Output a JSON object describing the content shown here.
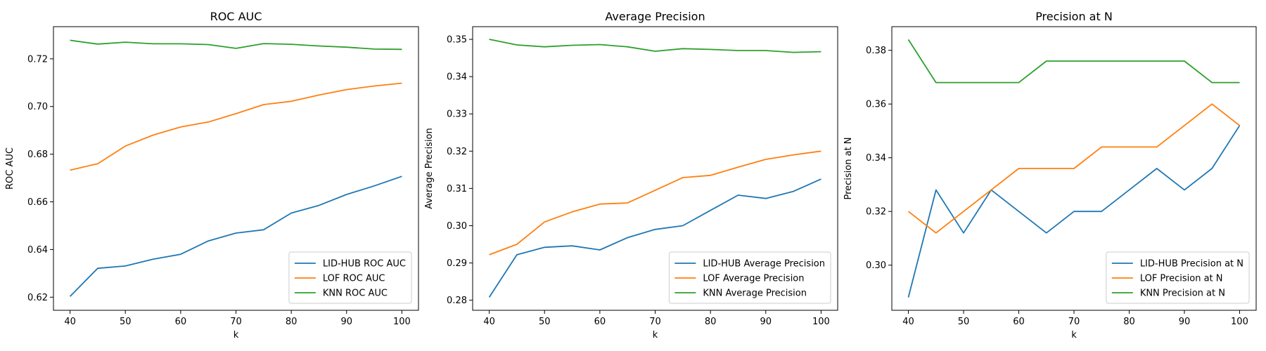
{
  "chart_data": [
    {
      "type": "line",
      "title": "ROC AUC",
      "xlabel": "k",
      "ylabel": "ROC AUC",
      "x": [
        40,
        45,
        50,
        55,
        60,
        65,
        70,
        75,
        80,
        85,
        90,
        95,
        100
      ],
      "xlim": [
        37,
        103
      ],
      "ylim": [
        0.6145,
        0.7335
      ],
      "xticks": [
        40,
        50,
        60,
        70,
        80,
        90,
        100
      ],
      "yticks": [
        0.62,
        0.64,
        0.66,
        0.68,
        0.7,
        0.72
      ],
      "ytick_labels": [
        "0.62",
        "0.64",
        "0.66",
        "0.68",
        "0.70",
        "0.72"
      ],
      "legend": "lower-right",
      "series": [
        {
          "name": "LID-HUB ROC AUC",
          "color": "#1f77b4",
          "values": [
            0.6203,
            0.6321,
            0.6331,
            0.6359,
            0.638,
            0.6436,
            0.6469,
            0.6483,
            0.6553,
            0.6585,
            0.6631,
            0.6667,
            0.6707
          ]
        },
        {
          "name": "LOF ROC AUC",
          "color": "#ff7f0e",
          "values": [
            0.6733,
            0.676,
            0.6834,
            0.688,
            0.6914,
            0.6935,
            0.697,
            0.7008,
            0.7022,
            0.7048,
            0.7071,
            0.7086,
            0.7098
          ]
        },
        {
          "name": "KNN ROC AUC",
          "color": "#2ca02c",
          "values": [
            0.7278,
            0.7262,
            0.727,
            0.7263,
            0.7263,
            0.726,
            0.7244,
            0.7264,
            0.7261,
            0.7254,
            0.7249,
            0.7241,
            0.724
          ]
        }
      ]
    },
    {
      "type": "line",
      "title": "Average Precision",
      "xlabel": "k",
      "ylabel": "Average Precision",
      "x": [
        40,
        45,
        50,
        55,
        60,
        65,
        70,
        75,
        80,
        85,
        90,
        95,
        100
      ],
      "xlim": [
        37,
        103
      ],
      "ylim": [
        0.2773,
        0.3534
      ],
      "xticks": [
        40,
        50,
        60,
        70,
        80,
        90,
        100
      ],
      "yticks": [
        0.28,
        0.29,
        0.3,
        0.31,
        0.32,
        0.33,
        0.34,
        0.35
      ],
      "ytick_labels": [
        "0.28",
        "0.29",
        "0.30",
        "0.31",
        "0.32",
        "0.33",
        "0.34",
        "0.35"
      ],
      "legend": "lower-right",
      "series": [
        {
          "name": "LID-HUB Average Precision",
          "color": "#1f77b4",
          "values": [
            0.2808,
            0.2922,
            0.2942,
            0.2946,
            0.2935,
            0.2968,
            0.299,
            0.3,
            0.3041,
            0.3082,
            0.3073,
            0.3092,
            0.3125
          ]
        },
        {
          "name": "LOF Average Precision",
          "color": "#ff7f0e",
          "values": [
            0.2922,
            0.295,
            0.301,
            0.3037,
            0.3058,
            0.3061,
            0.3095,
            0.3129,
            0.3135,
            0.3157,
            0.3178,
            0.319,
            0.32
          ]
        },
        {
          "name": "KNN Average Precision",
          "color": "#2ca02c",
          "values": [
            0.35,
            0.3485,
            0.348,
            0.3484,
            0.3486,
            0.348,
            0.3468,
            0.3475,
            0.3473,
            0.347,
            0.347,
            0.3465,
            0.3467
          ]
        }
      ]
    },
    {
      "type": "line",
      "title": "Precision at N",
      "xlabel": "k",
      "ylabel": "Precision at N",
      "x": [
        40,
        45,
        50,
        55,
        60,
        65,
        70,
        75,
        80,
        85,
        90,
        95,
        100
      ],
      "xlim": [
        37,
        103
      ],
      "ylim": [
        0.2832,
        0.3888
      ],
      "xticks": [
        40,
        50,
        60,
        70,
        80,
        90,
        100
      ],
      "yticks": [
        0.3,
        0.32,
        0.34,
        0.36,
        0.38
      ],
      "ytick_labels": [
        "0.30",
        "0.32",
        "0.34",
        "0.36",
        "0.38"
      ],
      "legend": "lower-right",
      "series": [
        {
          "name": "LID-HUB Precision at N",
          "color": "#1f77b4",
          "values": [
            0.288,
            0.328,
            0.312,
            0.328,
            0.32,
            0.312,
            0.32,
            0.32,
            0.328,
            0.336,
            0.328,
            0.336,
            0.352
          ]
        },
        {
          "name": "LOF Precision at N",
          "color": "#ff7f0e",
          "values": [
            0.32,
            0.312,
            0.32,
            0.328,
            0.336,
            0.336,
            0.336,
            0.344,
            0.344,
            0.344,
            0.352,
            0.36,
            0.352
          ]
        },
        {
          "name": "KNN Precision at N",
          "color": "#2ca02c",
          "values": [
            0.384,
            0.368,
            0.368,
            0.368,
            0.368,
            0.376,
            0.376,
            0.376,
            0.376,
            0.376,
            0.376,
            0.368,
            0.368
          ]
        }
      ]
    }
  ]
}
